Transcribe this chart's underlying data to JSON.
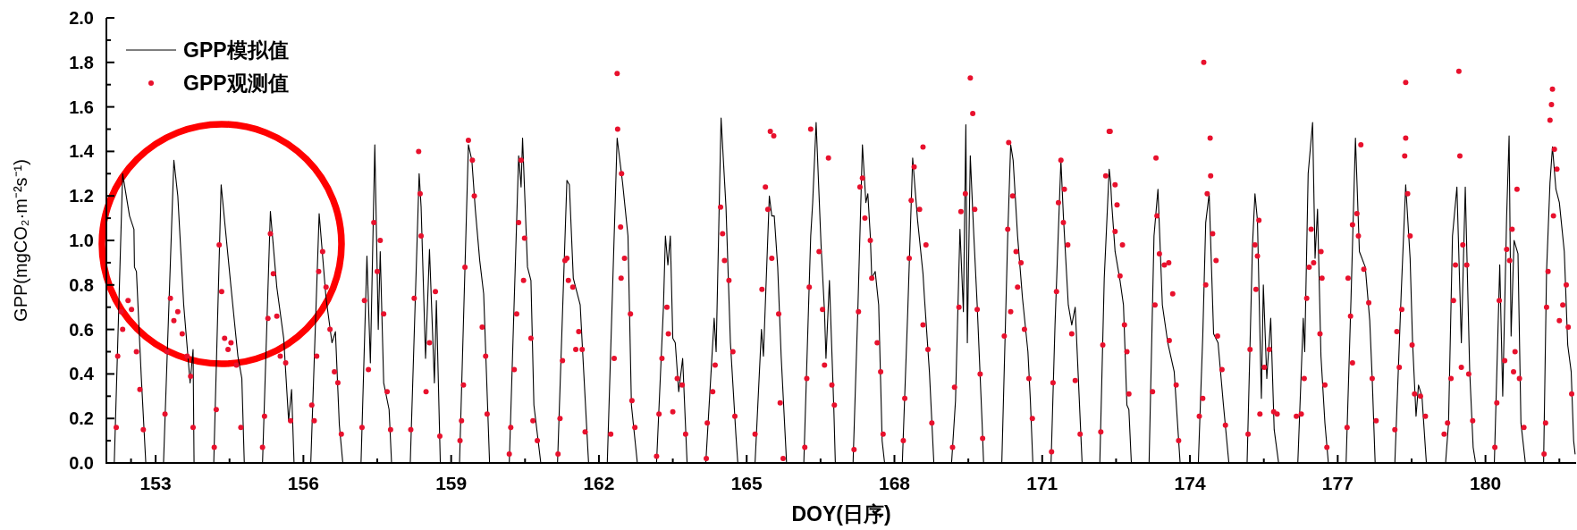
{
  "chart_data": {
    "type": "line",
    "xlabel": "DOY(日序)",
    "ylabel": "GPP(mgCO₂·m⁻²s⁻¹)",
    "legend": "top left",
    "xlim": [
      152,
      181.84
    ],
    "ylim": [
      0,
      2.0
    ],
    "xticks": [
      {
        "value": 152.5,
        "label": null
      },
      153,
      {
        "value": 154.5,
        "label": null
      },
      156,
      {
        "value": 157.5,
        "label": null
      },
      159,
      {
        "value": 160.5,
        "label": null
      },
      162,
      {
        "value": 163.5,
        "label": null
      },
      165,
      {
        "value": 166.5,
        "label": null
      },
      168,
      {
        "value": 169.5,
        "label": null
      },
      171,
      {
        "value": 172.5,
        "label": null
      },
      174,
      {
        "value": 175.5,
        "label": null
      },
      177,
      {
        "value": 178.5,
        "label": null
      },
      180,
      {
        "value": 181.5,
        "label": null
      }
    ],
    "yticks": [
      {
        "value": 0,
        "label": "0.0"
      },
      {
        "value": 0.1,
        "label": null
      },
      {
        "value": 0.2,
        "label": "0.2"
      },
      {
        "value": 0.3,
        "label": null
      },
      {
        "value": 0.4,
        "label": "0.4"
      },
      {
        "value": 0.5,
        "label": null
      },
      {
        "value": 0.6,
        "label": "0.6"
      },
      {
        "value": 0.7,
        "label": null
      },
      {
        "value": 0.8,
        "label": "0.8"
      },
      {
        "value": 0.9,
        "label": null
      },
      {
        "value": 1.0,
        "label": "1.0"
      },
      {
        "value": 1.1,
        "label": null
      },
      {
        "value": 1.2,
        "label": "1.2"
      },
      {
        "value": 1.3,
        "label": null
      },
      {
        "value": 1.4,
        "label": "1.4"
      },
      {
        "value": 1.5,
        "label": null
      },
      {
        "value": 1.6,
        "label": "1.6"
      },
      {
        "value": 1.7,
        "label": null
      },
      {
        "value": 1.8,
        "label": "1.8"
      },
      {
        "value": 1.9,
        "label": null
      },
      {
        "value": 2.0,
        "label": "2.0"
      }
    ],
    "series": [
      {
        "name": "GPP模拟值",
        "type": "line",
        "color": "#000000",
        "x": [
          152.16,
          152.33,
          152.47,
          152.56,
          152.57,
          152.61,
          152.71,
          152.8,
          153.16,
          153.37,
          153.45,
          153.57,
          153.7,
          153.76,
          153.78,
          154.18,
          154.33,
          154.53,
          154.67,
          154.75,
          154.8,
          155.17,
          155.33,
          155.46,
          155.6,
          155.7,
          155.76,
          155.81,
          156.15,
          156.32,
          156.46,
          156.58,
          156.65,
          156.73,
          156.8,
          157.17,
          157.29,
          157.36,
          157.45,
          157.52,
          157.56,
          157.63,
          157.74,
          157.79,
          158.17,
          158.35,
          158.39,
          158.48,
          158.56,
          158.66,
          158.7,
          158.78,
          159.17,
          159.35,
          159.42,
          159.49,
          159.58,
          159.66,
          159.78,
          160.18,
          160.37,
          160.42,
          160.45,
          160.55,
          160.62,
          160.68,
          160.82,
          161.16,
          161.35,
          161.4,
          161.48,
          161.62,
          161.66,
          161.79,
          162.17,
          162.37,
          162.48,
          162.59,
          162.66,
          162.78,
          163.17,
          163.31,
          163.35,
          163.4,
          163.45,
          163.5,
          163.55,
          163.62,
          163.7,
          163.79,
          164.17,
          164.34,
          164.38,
          164.48,
          164.58,
          164.67,
          164.78,
          164.82,
          165.17,
          165.3,
          165.34,
          165.46,
          165.51,
          165.56,
          165.63,
          165.7,
          165.81,
          166.16,
          166.3,
          166.34,
          166.41,
          166.51,
          166.58,
          166.61,
          166.68,
          166.77,
          166.8,
          167.16,
          167.26,
          167.35,
          167.42,
          167.46,
          167.51,
          167.54,
          167.61,
          167.68,
          167.75,
          167.8,
          168.16,
          168.27,
          168.37,
          168.47,
          168.58,
          168.61,
          168.71,
          168.8,
          169.16,
          169.24,
          169.33,
          169.4,
          169.45,
          169.48,
          169.54,
          169.61,
          169.68,
          169.78,
          169.81,
          170.18,
          170.3,
          170.36,
          170.41,
          170.5,
          170.6,
          170.71,
          170.76,
          170.81,
          171.18,
          171.26,
          171.38,
          171.43,
          171.53,
          171.6,
          171.67,
          171.81,
          172.17,
          172.26,
          172.36,
          172.39,
          172.41,
          172.48,
          172.58,
          172.65,
          172.72,
          172.76,
          172.81,
          173.17,
          173.27,
          173.35,
          173.44,
          173.55,
          173.68,
          173.8,
          174.17,
          174.26,
          174.32,
          174.39,
          174.48,
          174.57,
          174.68,
          174.79,
          175.16,
          175.27,
          175.32,
          175.37,
          175.45,
          175.49,
          175.56,
          175.64,
          175.71,
          175.8,
          176.19,
          176.3,
          176.33,
          176.4,
          176.49,
          176.54,
          176.59,
          176.66,
          176.74,
          176.81,
          177.17,
          177.27,
          177.36,
          177.44,
          177.56,
          177.65,
          177.7,
          177.76,
          178.16,
          178.29,
          178.38,
          178.47,
          178.52,
          178.59,
          178.64,
          178.71,
          178.8,
          179.19,
          179.25,
          179.33,
          179.42,
          179.51,
          179.59,
          179.68,
          179.75,
          179.8,
          180.18,
          180.29,
          180.35,
          180.43,
          180.48,
          180.52,
          180.58,
          180.66,
          180.72,
          180.81,
          181.18,
          181.24,
          181.31,
          181.36,
          181.43,
          181.5,
          181.6,
          181.67,
          181.74,
          181.79,
          181.82
        ],
        "values": [
          0,
          1.3,
          1.11,
          1.05,
          0.88,
          0.86,
          0.38,
          0,
          0,
          1.36,
          1.2,
          0.71,
          0.36,
          0.51,
          0,
          0,
          1.25,
          0.79,
          0.48,
          0.38,
          0,
          0,
          1.13,
          0.79,
          0.56,
          0.19,
          0.33,
          0,
          0,
          1.12,
          0.74,
          0.54,
          0.59,
          0.17,
          0,
          0,
          0.93,
          0.45,
          1.43,
          0.6,
          0.95,
          0.36,
          0.24,
          0,
          0,
          1.3,
          1.15,
          0.47,
          0.96,
          0.36,
          0.73,
          0,
          0,
          1.43,
          1.36,
          1.14,
          0.91,
          0.76,
          0,
          0,
          1.38,
          1.24,
          1.46,
          0.88,
          0.82,
          0.26,
          0,
          0,
          1.27,
          1.25,
          0.83,
          0.71,
          0.54,
          0,
          0,
          1.46,
          1.26,
          1.02,
          0.26,
          0,
          0,
          0.7,
          1.02,
          0.89,
          1.02,
          0.56,
          0.54,
          0.32,
          0.47,
          0,
          0,
          0.65,
          0.5,
          1.55,
          1.15,
          0.54,
          0.13,
          0,
          0,
          0.6,
          0.48,
          1.2,
          1.11,
          1.11,
          0.88,
          0.48,
          0,
          0,
          1.02,
          1.17,
          1.53,
          0.98,
          0.68,
          0.47,
          0.82,
          0.24,
          0,
          0,
          0.71,
          1.43,
          1.17,
          1.21,
          1.02,
          0.83,
          0.86,
          0.71,
          0.1,
          0,
          0,
          0.68,
          1.37,
          1.09,
          0.85,
          0.74,
          0.41,
          0,
          0,
          0.28,
          1.05,
          0.68,
          1.52,
          0.54,
          1.38,
          1.03,
          0.71,
          0.18,
          0,
          0,
          1.02,
          1.43,
          1.36,
          1.02,
          0.74,
          0.5,
          0.28,
          0,
          0,
          0.62,
          1.36,
          1.11,
          0.71,
          0.62,
          0.7,
          0,
          0,
          0.83,
          1.32,
          1.26,
          1.17,
          0.95,
          0.82,
          0.71,
          0.26,
          0.24,
          0,
          0,
          1.02,
          1.23,
          0.71,
          0.54,
          0.41,
          0,
          0,
          0.57,
          1.08,
          1.21,
          0.58,
          0.54,
          0.26,
          0,
          0,
          0.98,
          1.21,
          1.09,
          0.29,
          0.8,
          0.38,
          0.65,
          0.15,
          0,
          0,
          0.65,
          0.5,
          1.3,
          1.53,
          0.92,
          1.14,
          0.48,
          0.18,
          0,
          0,
          0.74,
          1.46,
          0.95,
          0.88,
          0.64,
          0.38,
          0,
          0,
          0.77,
          1.25,
          0.92,
          0.54,
          0.21,
          0.35,
          0.3,
          0,
          0,
          0.18,
          1.02,
          1.24,
          0.54,
          1.24,
          0.41,
          0.07,
          0,
          0,
          0.89,
          0.3,
          1.11,
          1.47,
          0.57,
          1.0,
          0.94,
          0.18,
          0,
          0,
          0.86,
          1.26,
          1.42,
          1.23,
          1.17,
          0.95,
          0.53,
          0.41,
          0.1,
          0.04
        ]
      },
      {
        "name": "GPP观测值",
        "type": "scatter",
        "color": "#e8112d",
        "x": [
          152.2,
          152.23,
          152.3,
          152.33,
          152.44,
          152.51,
          152.61,
          152.68,
          152.75,
          153.19,
          153.23,
          153.3,
          153.37,
          153.45,
          153.54,
          153.64,
          153.71,
          153.76,
          154.19,
          154.23,
          154.29,
          154.34,
          154.4,
          154.47,
          154.53,
          154.64,
          154.73,
          155.17,
          155.21,
          155.28,
          155.33,
          155.39,
          155.46,
          155.53,
          155.64,
          155.74,
          156.17,
          156.22,
          156.27,
          156.31,
          156.39,
          156.46,
          156.54,
          156.63,
          156.7,
          156.77,
          157.19,
          157.24,
          157.32,
          157.43,
          157.5,
          157.56,
          157.63,
          157.7,
          157.77,
          158.18,
          158.25,
          158.34,
          158.37,
          158.39,
          158.49,
          158.56,
          158.68,
          158.77,
          159.18,
          159.21,
          159.25,
          159.28,
          159.35,
          159.43,
          159.47,
          159.63,
          159.7,
          159.73,
          160.18,
          160.21,
          160.28,
          160.33,
          160.37,
          160.42,
          160.49,
          160.47,
          160.62,
          160.66,
          160.75,
          161.17,
          161.21,
          161.26,
          161.31,
          161.35,
          161.38,
          161.47,
          161.53,
          161.59,
          161.66,
          161.72,
          162.24,
          162.31,
          162.37,
          162.38,
          162.46,
          162.44,
          162.52,
          162.45,
          162.64,
          162.67,
          162.73,
          163.17,
          163.22,
          163.28,
          163.38,
          163.41,
          163.5,
          163.59,
          163.69,
          163.76,
          164.18,
          164.2,
          164.31,
          164.36,
          164.47,
          164.51,
          164.55,
          164.64,
          164.72,
          164.76,
          165.17,
          165.31,
          165.38,
          165.43,
          165.48,
          165.55,
          165.51,
          165.65,
          165.68,
          165.74,
          166.18,
          166.22,
          166.27,
          166.3,
          166.47,
          166.54,
          166.58,
          166.66,
          166.73,
          166.78,
          167.18,
          167.27,
          167.3,
          167.35,
          167.4,
          167.51,
          167.54,
          167.65,
          167.72,
          167.77,
          168.18,
          168.21,
          168.3,
          168.34,
          168.4,
          168.58,
          168.51,
          168.64,
          168.58,
          168.68,
          168.76,
          169.18,
          169.22,
          169.31,
          169.35,
          169.44,
          169.54,
          169.59,
          169.63,
          169.68,
          169.74,
          169.79,
          170.23,
          170.3,
          170.32,
          170.4,
          170.47,
          170.57,
          170.5,
          170.36,
          170.64,
          170.73,
          170.8,
          171.19,
          171.22,
          171.29,
          171.33,
          171.38,
          171.45,
          171.43,
          171.52,
          171.6,
          171.67,
          171.77,
          172.19,
          172.23,
          172.29,
          172.36,
          172.38,
          172.48,
          172.52,
          172.48,
          172.63,
          172.58,
          172.67,
          172.72,
          172.76,
          173.24,
          173.29,
          173.31,
          173.33,
          173.38,
          173.48,
          173.57,
          173.65,
          173.58,
          173.72,
          173.77,
          174.19,
          174.26,
          174.28,
          174.32,
          174.41,
          174.42,
          174.35,
          174.46,
          174.53,
          174.56,
          174.65,
          174.72,
          175.18,
          175.22,
          175.32,
          175.37,
          175.4,
          175.34,
          175.42,
          175.51,
          175.61,
          175.7,
          175.77,
          176.16,
          176.26,
          176.32,
          176.37,
          176.42,
          176.46,
          176.51,
          176.66,
          176.68,
          176.64,
          176.74,
          176.78,
          177.19,
          177.21,
          177.26,
          177.3,
          177.3,
          177.39,
          177.47,
          177.42,
          177.53,
          177.63,
          177.7,
          177.78,
          178.16,
          178.2,
          178.25,
          178.3,
          178.36,
          178.38,
          178.38,
          178.42,
          178.47,
          178.51,
          178.56,
          178.68,
          178.78,
          179.16,
          179.23,
          179.3,
          179.35,
          179.39,
          179.46,
          179.48,
          179.51,
          179.54,
          179.62,
          179.66,
          179.74,
          180.19,
          180.23,
          180.28,
          180.39,
          180.43,
          180.49,
          180.54,
          180.6,
          180.64,
          180.57,
          180.69,
          180.78,
          181.19,
          181.22,
          181.24,
          181.27,
          181.31,
          181.34,
          181.36,
          181.4,
          181.45,
          181.38,
          181.5,
          181.57,
          181.64,
          181.68,
          181.75
        ],
        "values": [
          0.16,
          0.48,
          0.68,
          0.6,
          0.73,
          0.69,
          0.5,
          0.33,
          0.15,
          0.22,
          0.5,
          0.74,
          0.64,
          0.68,
          0.58,
          0.48,
          0.39,
          0.16,
          0.07,
          0.24,
          0.98,
          0.77,
          0.56,
          0.51,
          0.54,
          0.44,
          0.16,
          0.07,
          0.21,
          0.65,
          1.03,
          0.85,
          0.66,
          0.48,
          0.45,
          0.19,
          0.26,
          0.19,
          0.48,
          0.86,
          0.95,
          0.79,
          0.6,
          0.41,
          0.36,
          0.13,
          0.16,
          0.73,
          0.42,
          1.08,
          0.86,
          1.0,
          0.67,
          0.32,
          0.15,
          0.15,
          0.74,
          1.4,
          1.21,
          1.02,
          0.32,
          0.54,
          0.77,
          0.12,
          0.1,
          0.19,
          0.35,
          0.88,
          1.45,
          1.36,
          1.2,
          0.61,
          0.48,
          0.22,
          0.04,
          0.16,
          0.42,
          0.67,
          1.08,
          1.36,
          1.01,
          0.82,
          0.56,
          0.19,
          0.1,
          0.04,
          0.2,
          0.46,
          0.91,
          0.92,
          0.82,
          0.79,
          0.51,
          0.59,
          0.51,
          0.14,
          0.13,
          0.47,
          1.75,
          1.5,
          1.3,
          1.06,
          0.92,
          0.83,
          0.67,
          0.28,
          0.16,
          0.03,
          0.22,
          0.47,
          0.7,
          0.58,
          0.23,
          0.38,
          0.35,
          0.13,
          0.02,
          0.18,
          0.32,
          0.44,
          1.15,
          1.03,
          0.91,
          0.82,
          0.5,
          0.21,
          0.13,
          0.78,
          1.24,
          1.14,
          1.49,
          1.47,
          0.92,
          0.67,
          0.27,
          0.02,
          0.07,
          0.38,
          0.79,
          1.5,
          0.95,
          0.69,
          0.44,
          1.37,
          0.35,
          0.26,
          0.06,
          0.68,
          1.24,
          1.28,
          1.1,
          1.0,
          0.83,
          0.54,
          0.41,
          0.13,
          0.1,
          0.29,
          0.92,
          1.18,
          1.33,
          1.42,
          1.14,
          0.98,
          0.62,
          0.51,
          0.18,
          0.07,
          0.34,
          0.7,
          1.13,
          1.21,
          1.73,
          1.57,
          1.14,
          0.69,
          0.4,
          0.11,
          0.57,
          1.05,
          1.44,
          1.2,
          0.95,
          0.9,
          0.79,
          0.68,
          0.6,
          0.38,
          0.2,
          0.05,
          0.36,
          0.77,
          1.17,
          1.36,
          1.23,
          1.08,
          0.98,
          0.58,
          0.37,
          0.13,
          0.14,
          0.53,
          1.29,
          1.49,
          1.49,
          1.25,
          1.16,
          1.04,
          0.98,
          0.84,
          0.62,
          0.5,
          0.31,
          0.32,
          0.71,
          1.37,
          1.11,
          0.94,
          0.89,
          0.9,
          0.76,
          0.55,
          0.35,
          0.1,
          0.21,
          0.29,
          1.8,
          0.8,
          1.46,
          1.29,
          1.21,
          1.03,
          0.91,
          0.57,
          0.42,
          0.17,
          0.13,
          0.51,
          0.98,
          0.93,
          1.09,
          0.78,
          0.22,
          0.43,
          0.51,
          0.23,
          0.22,
          0.21,
          0.22,
          0.38,
          0.74,
          0.88,
          1.05,
          0.9,
          0.95,
          0.83,
          0.58,
          0.35,
          0.07,
          0.16,
          0.83,
          0.66,
          0.45,
          1.07,
          1.12,
          1.43,
          1.02,
          0.87,
          0.72,
          0.38,
          0.19,
          0.15,
          0.59,
          0.43,
          0.69,
          1.38,
          1.71,
          1.46,
          1.21,
          1.02,
          0.53,
          0.31,
          0.3,
          0.21,
          0.13,
          0.18,
          0.38,
          0.73,
          0.89,
          1.76,
          1.38,
          0.43,
          0.98,
          0.89,
          0.4,
          0.19,
          0.07,
          0.27,
          0.73,
          0.46,
          0.96,
          0.91,
          1.05,
          0.5,
          1.23,
          0.41,
          0.38,
          0.16,
          0.04,
          0.18,
          0.7,
          0.86,
          1.54,
          1.61,
          1.68,
          1.41,
          1.32,
          1.11,
          0.64,
          0.71,
          0.8,
          0.61,
          0.31
        ]
      }
    ]
  }
}
